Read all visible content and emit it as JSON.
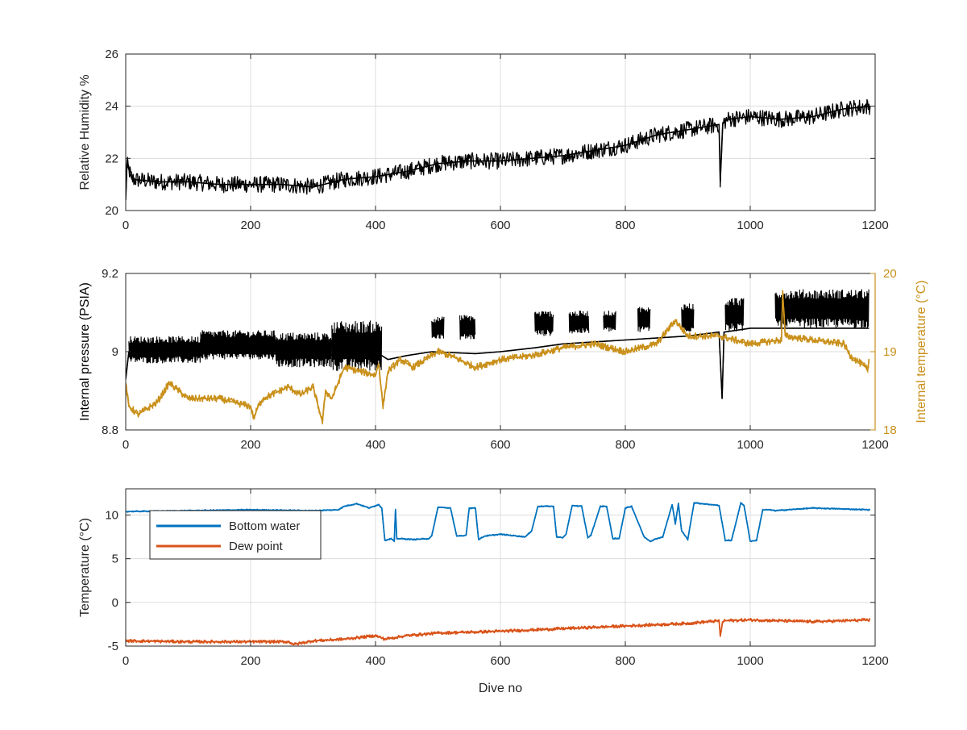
{
  "chart_data": [
    {
      "type": "line",
      "xlabel": "",
      "ylabel": "Relative Humidity %",
      "xlim": [
        0,
        1200
      ],
      "ylim": [
        20,
        26
      ],
      "xticks": [
        0,
        200,
        400,
        600,
        800,
        1000,
        1200
      ],
      "xtick_labels": [
        "0",
        "200",
        "400",
        "600",
        "800",
        "1000",
        "1200"
      ],
      "yticks": [
        20,
        22,
        24,
        26
      ],
      "ytick_labels": [
        "20",
        "22",
        "24",
        "26"
      ],
      "grid": true,
      "series": [
        {
          "color": "#000000",
          "noise": 0.32,
          "x": [
            0,
            2,
            10,
            50,
            100,
            150,
            200,
            250,
            300,
            350,
            400,
            450,
            500,
            550,
            600,
            650,
            700,
            750,
            800,
            850,
            900,
            950,
            952,
            956,
            958,
            965,
            1000,
            1050,
            1100,
            1150,
            1192
          ],
          "y": [
            20.4,
            21.8,
            21.2,
            21.1,
            21.1,
            21.0,
            21.0,
            21.0,
            20.9,
            21.2,
            21.3,
            21.5,
            21.8,
            21.9,
            21.9,
            22.0,
            22.1,
            22.3,
            22.5,
            22.9,
            23.1,
            23.3,
            21.1,
            23.3,
            23.4,
            23.5,
            23.6,
            23.5,
            23.6,
            23.9,
            24.0
          ]
        }
      ]
    },
    {
      "type": "line",
      "xlabel": "",
      "ylabel": "Internal pressure (PSIA)",
      "ylabel_right": "Internal temperature (°C)",
      "xlim": [
        0,
        1200
      ],
      "ylim": [
        8.8,
        9.2
      ],
      "ylim_right": [
        18,
        20
      ],
      "xticks": [
        0,
        200,
        400,
        600,
        800,
        1000,
        1200
      ],
      "xtick_labels": [
        "0",
        "200",
        "400",
        "600",
        "800",
        "1000",
        "1200"
      ],
      "yticks": [
        8.8,
        9.0,
        9.2
      ],
      "ytick_labels": [
        "8.8",
        "9",
        "9.2"
      ],
      "yticks_right": [
        18,
        19,
        20
      ],
      "ytick_labels_right": [
        "18",
        "19",
        "20"
      ],
      "right_axis_color": "#c9901a",
      "grid": true,
      "series": [
        {
          "axis": "left",
          "color": "#000000",
          "band_segments": [
            {
              "x0": 5,
              "x1": 120,
              "lo": 8.97,
              "hi": 9.04
            },
            {
              "x0": 120,
              "x1": 240,
              "lo": 8.98,
              "hi": 9.055
            },
            {
              "x0": 240,
              "x1": 330,
              "lo": 8.96,
              "hi": 9.05
            },
            {
              "x0": 330,
              "x1": 410,
              "lo": 8.95,
              "hi": 9.08
            },
            {
              "x0": 490,
              "x1": 510,
              "lo": 9.03,
              "hi": 9.09
            },
            {
              "x0": 535,
              "x1": 560,
              "lo": 9.03,
              "hi": 9.095
            },
            {
              "x0": 655,
              "x1": 685,
              "lo": 9.04,
              "hi": 9.105
            },
            {
              "x0": 710,
              "x1": 742,
              "lo": 9.045,
              "hi": 9.105
            },
            {
              "x0": 765,
              "x1": 785,
              "lo": 9.05,
              "hi": 9.105
            },
            {
              "x0": 820,
              "x1": 840,
              "lo": 9.05,
              "hi": 9.115
            },
            {
              "x0": 890,
              "x1": 910,
              "lo": 9.05,
              "hi": 9.125
            },
            {
              "x0": 960,
              "x1": 990,
              "lo": 9.05,
              "hi": 9.14
            },
            {
              "x0": 1040,
              "x1": 1190,
              "lo": 9.06,
              "hi": 9.16
            }
          ],
          "x": [
            0,
            5,
            410,
            420,
            450,
            490,
            560,
            600,
            655,
            700,
            800,
            900,
            950,
            955,
            958,
            1000,
            1190
          ],
          "y": [
            8.93,
            9.0,
            8.99,
            8.98,
            8.99,
            9.0,
            8.995,
            9.0,
            9.01,
            9.02,
            9.03,
            9.04,
            9.05,
            8.88,
            9.05,
            9.06,
            9.06
          ]
        },
        {
          "axis": "right",
          "color": "#c9901a",
          "noise": 0.045,
          "x": [
            0,
            5,
            20,
            50,
            70,
            100,
            150,
            200,
            205,
            212,
            220,
            260,
            280,
            300,
            315,
            320,
            330,
            350,
            400,
            405,
            412,
            420,
            440,
            460,
            480,
            500,
            520,
            560,
            600,
            650,
            700,
            750,
            800,
            850,
            880,
            900,
            950,
            1000,
            1050,
            1052,
            1056,
            1100,
            1150,
            1160,
            1185,
            1188,
            1190
          ],
          "y": [
            18.6,
            18.3,
            18.2,
            18.35,
            18.6,
            18.4,
            18.4,
            18.3,
            18.15,
            18.3,
            18.4,
            18.55,
            18.45,
            18.55,
            18.1,
            18.5,
            18.4,
            18.8,
            18.7,
            18.85,
            18.3,
            18.75,
            18.9,
            18.8,
            18.9,
            19.0,
            18.95,
            18.8,
            18.9,
            18.95,
            19.05,
            19.1,
            19.0,
            19.1,
            19.4,
            19.2,
            19.2,
            19.1,
            19.15,
            19.75,
            19.2,
            19.15,
            19.1,
            18.95,
            18.8,
            18.75,
            18.9
          ]
        }
      ]
    },
    {
      "type": "line",
      "xlabel": "Dive no",
      "ylabel": "Temperature (°C)",
      "xlim": [
        0,
        1200
      ],
      "ylim": [
        -5,
        13
      ],
      "xticks": [
        0,
        200,
        400,
        600,
        800,
        1000,
        1200
      ],
      "xtick_labels": [
        "0",
        "200",
        "400",
        "600",
        "800",
        "1000",
        "1200"
      ],
      "yticks": [
        -5,
        0,
        5,
        10
      ],
      "ytick_labels": [
        "-5",
        "0",
        "5",
        "10"
      ],
      "grid": true,
      "legend": "top-left",
      "series": [
        {
          "name": "Bottom water",
          "color": "#0072bd",
          "noise": 0.07,
          "x": [
            0,
            100,
            200,
            300,
            340,
            350,
            370,
            390,
            405,
            410,
            415,
            425,
            430,
            432,
            434,
            440,
            460,
            485,
            490,
            500,
            520,
            530,
            540,
            545,
            550,
            560,
            565,
            575,
            600,
            640,
            650,
            660,
            685,
            690,
            700,
            705,
            715,
            730,
            740,
            745,
            760,
            770,
            780,
            790,
            800,
            810,
            830,
            840,
            850,
            860,
            875,
            880,
            885,
            890,
            900,
            910,
            950,
            960,
            970,
            985,
            990,
            1000,
            1010,
            1020,
            1030,
            1040,
            1100,
            1192
          ],
          "y": [
            10.4,
            10.5,
            10.6,
            10.5,
            10.6,
            11.0,
            11.3,
            10.8,
            11.2,
            10.8,
            7.1,
            7.3,
            7.0,
            10.6,
            7.3,
            7.3,
            7.2,
            7.3,
            7.6,
            10.9,
            10.8,
            7.6,
            7.6,
            7.7,
            10.8,
            10.8,
            7.2,
            7.6,
            7.8,
            7.5,
            8.2,
            11.0,
            11.0,
            7.5,
            7.4,
            7.8,
            11.1,
            11.0,
            7.4,
            7.7,
            11.0,
            11.0,
            7.3,
            7.3,
            10.8,
            11.0,
            7.5,
            7.0,
            7.3,
            7.5,
            11.2,
            9.0,
            11.3,
            8.2,
            7.2,
            11.4,
            11.1,
            7.1,
            7.1,
            11.4,
            11.1,
            7.0,
            7.1,
            10.6,
            10.6,
            10.5,
            10.8,
            10.6
          ]
        },
        {
          "name": "Dew point",
          "color": "#d95319",
          "noise": 0.18,
          "x": [
            0,
            100,
            200,
            260,
            270,
            300,
            350,
            400,
            415,
            450,
            500,
            600,
            700,
            800,
            900,
            950,
            952,
            956,
            958,
            1000,
            1050,
            1100,
            1150,
            1192
          ],
          "y": [
            -4.4,
            -4.5,
            -4.5,
            -4.5,
            -4.8,
            -4.4,
            -4.2,
            -3.8,
            -4.2,
            -3.8,
            -3.5,
            -3.3,
            -3.0,
            -2.7,
            -2.4,
            -2.1,
            -3.8,
            -2.2,
            -2.1,
            -2.0,
            -2.1,
            -2.2,
            -2.1,
            -2.0
          ]
        }
      ]
    }
  ]
}
